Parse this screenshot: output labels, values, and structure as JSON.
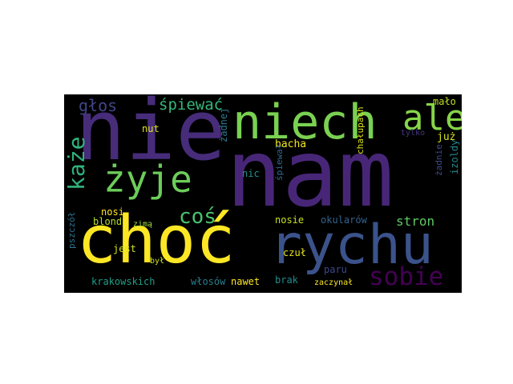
{
  "words": [
    {
      "text": "nam",
      "color": "#482677"
    },
    {
      "text": "nie",
      "color": "#472c7a"
    },
    {
      "text": "choć",
      "color": "#fde725"
    },
    {
      "text": "niech",
      "color": "#7ad151"
    },
    {
      "text": "rychu",
      "color": "#3b528b"
    },
    {
      "text": "ale",
      "color": "#86d549"
    },
    {
      "text": "żyje",
      "color": "#6ccd5a"
    },
    {
      "text": "sobie",
      "color": "#440154"
    },
    {
      "text": "każe",
      "color": "#2fb47c"
    },
    {
      "text": "coś",
      "color": "#4ac16d"
    },
    {
      "text": "śpiewać",
      "color": "#35b779"
    },
    {
      "text": "głos",
      "color": "#404688"
    },
    {
      "text": "stron",
      "color": "#5ec962"
    },
    {
      "text": "mało",
      "color": "#c2df23"
    },
    {
      "text": "już",
      "color": "#d8e219"
    },
    {
      "text": "bacha",
      "color": "#f1e51d"
    },
    {
      "text": "nut",
      "color": "#e2e418"
    },
    {
      "text": "żadnej",
      "color": "#2a788e"
    },
    {
      "text": "tylko",
      "color": "#453781"
    },
    {
      "text": "chałupach",
      "color": "#dde318"
    },
    {
      "text": "izoldy",
      "color": "#23888e"
    },
    {
      "text": "żadnie",
      "color": "#3e4a89"
    },
    {
      "text": "nic",
      "color": "#21918c"
    },
    {
      "text": "śpiewał",
      "color": "#31688e"
    },
    {
      "text": "nosi",
      "color": "#fde725"
    },
    {
      "text": "blond",
      "color": "#b5de2b"
    },
    {
      "text": "zimą",
      "color": "#a0da39"
    },
    {
      "text": "nosie",
      "color": "#c8e020"
    },
    {
      "text": "okularów",
      "color": "#33638d"
    },
    {
      "text": "jest",
      "color": "#d2e21b"
    },
    {
      "text": "pszczół",
      "color": "#2c728e"
    },
    {
      "text": "był",
      "color": "#cae11f"
    },
    {
      "text": "czuł",
      "color": "#e5e419"
    },
    {
      "text": "paru",
      "color": "#3e4989"
    },
    {
      "text": "krakowskich",
      "color": "#1f9e89"
    },
    {
      "text": "włosów",
      "color": "#277f8e"
    },
    {
      "text": "nawet",
      "color": "#fde725"
    },
    {
      "text": "brak",
      "color": "#228c8d"
    },
    {
      "text": "zaczynał",
      "color": "#fbe723"
    }
  ]
}
